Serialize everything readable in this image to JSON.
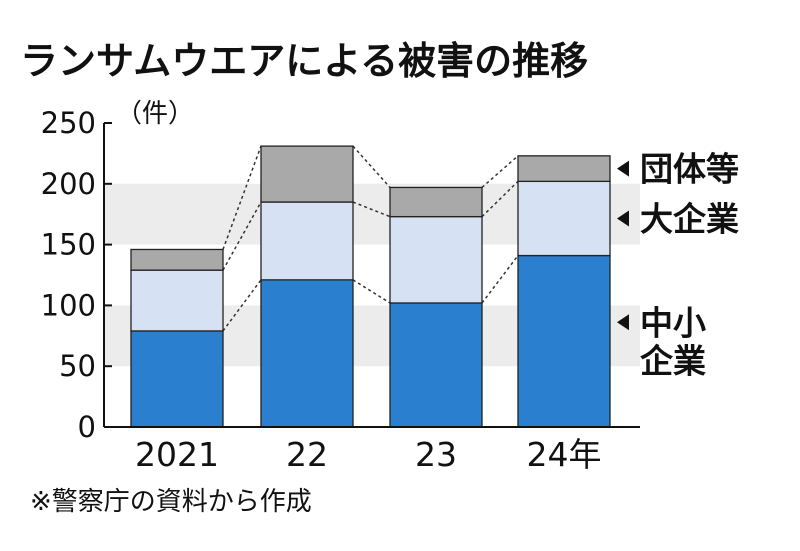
{
  "chart_data": {
    "type": "bar",
    "stacked": true,
    "title": "ランサムウエアによる被害の推移",
    "unit_label": "（件）",
    "categories": [
      "2021",
      "22",
      "23",
      "24年"
    ],
    "series": [
      {
        "name": "中小企業",
        "legend_lines": [
          "中小",
          "企業"
        ],
        "color": "#2a7fcf",
        "values": [
          79,
          121,
          102,
          141
        ]
      },
      {
        "name": "大企業",
        "legend_lines": [
          "大企業"
        ],
        "color": "#d6e2f3",
        "values": [
          50,
          64,
          71,
          61
        ]
      },
      {
        "name": "団体等",
        "legend_lines": [
          "団体等"
        ],
        "color": "#a9a9a9",
        "values": [
          17,
          46,
          24,
          21
        ]
      }
    ],
    "ylim": [
      0,
      250
    ],
    "yticks": [
      "0",
      "50",
      "100",
      "150",
      "200",
      "250"
    ],
    "grid": "alternating bands",
    "source": "※警察庁の資料から作成"
  }
}
